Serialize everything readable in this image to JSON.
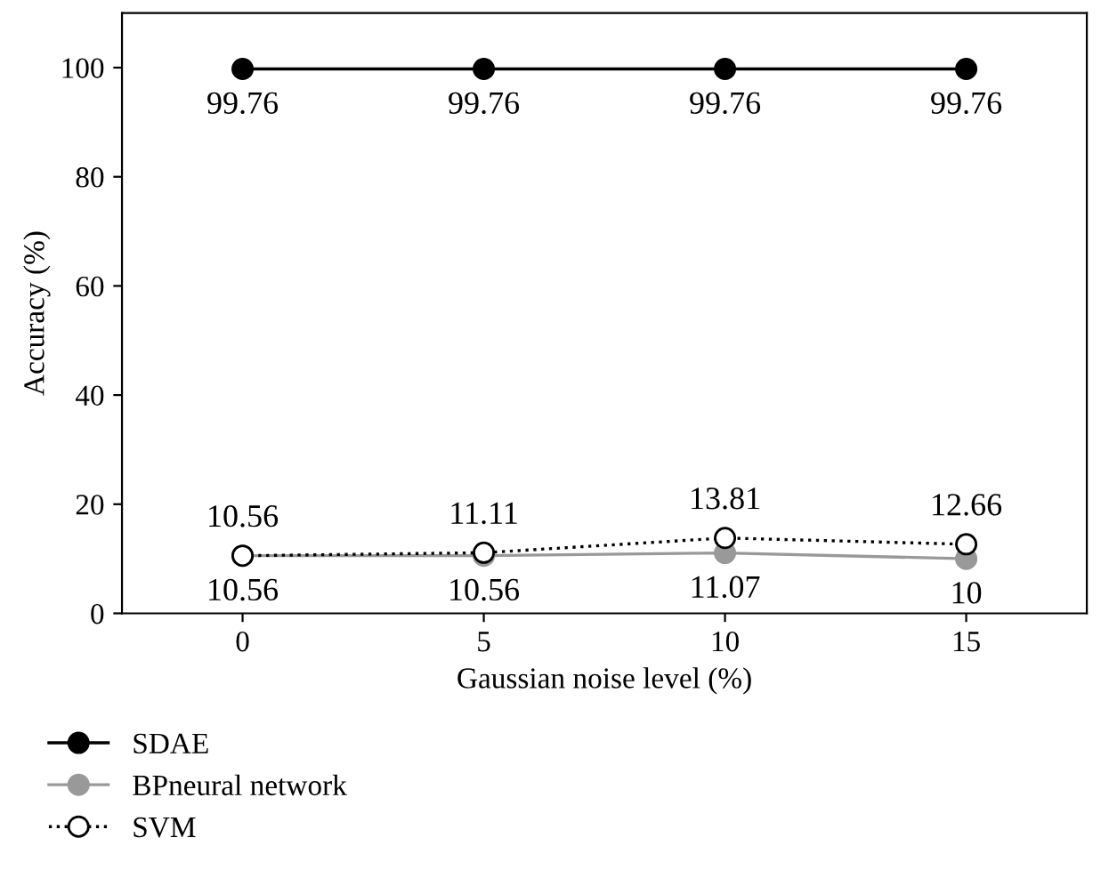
{
  "chart_data": {
    "type": "line",
    "xlabel": "Gaussian noise level (%)",
    "ylabel": "Accuracy (%)",
    "x": [
      0,
      5,
      10,
      15
    ],
    "xlim": [
      -2.5,
      17.5
    ],
    "xticks": [
      0,
      5,
      10,
      15
    ],
    "ylim": [
      0,
      110
    ],
    "yticks": [
      0,
      20,
      40,
      60,
      80,
      100
    ],
    "series": [
      {
        "name": "SDAE",
        "color": "#000000",
        "values": [
          99.76,
          99.76,
          99.76,
          99.76
        ],
        "line_style": "solid"
      },
      {
        "name": "BPneural network",
        "color": "#999999",
        "values": [
          10.56,
          10.56,
          11.07,
          10
        ],
        "line_style": "solid"
      },
      {
        "name": "SVM",
        "color": "#000000",
        "values": [
          10.56,
          11.11,
          13.81,
          12.66
        ],
        "line_style": "dotted"
      }
    ],
    "marker": "circle",
    "data_labels": true,
    "grid": false,
    "legend": "bottom left"
  }
}
